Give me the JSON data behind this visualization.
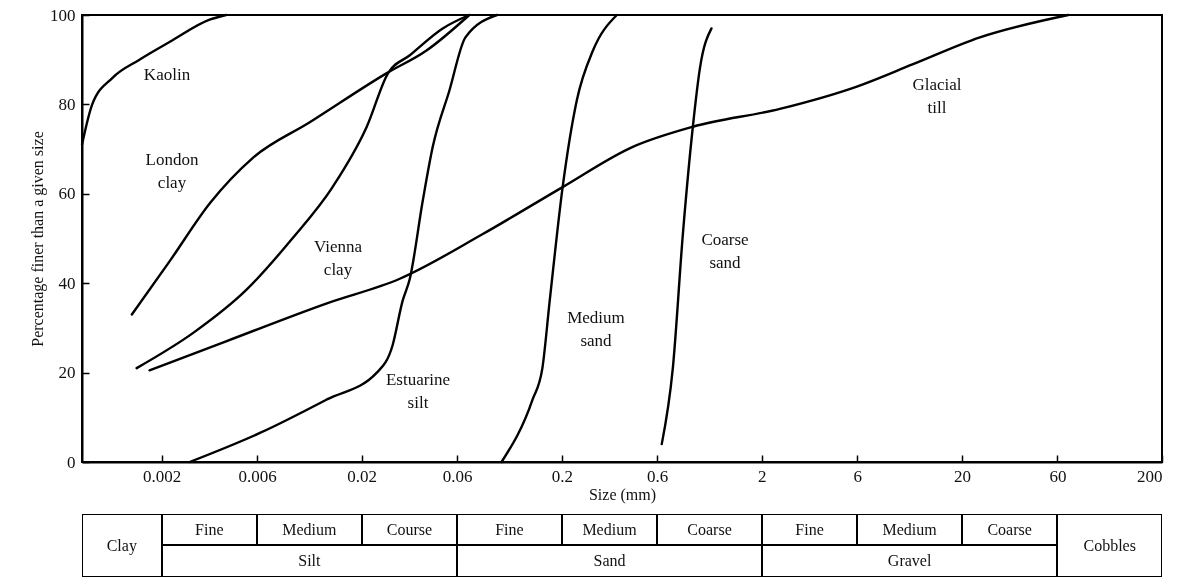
{
  "chart_data": {
    "type": "line",
    "xlabel": "Size (mm)",
    "ylabel": "Percentage finer than a given size",
    "log": "x",
    "xlim": [
      0.0008,
      200
    ],
    "xticks": [
      0.002,
      0.006,
      0.02,
      0.06,
      0.2,
      0.6,
      2,
      6,
      20,
      60,
      200
    ],
    "ylim": [
      0,
      100
    ],
    "yticks": [
      0,
      20,
      40,
      60,
      80,
      100
    ],
    "grid": false,
    "marker": "none",
    "line_style": "solid",
    "series": [
      {
        "name": "Kaolin",
        "color": "#000000",
        "x": [
          0.0008,
          0.0009,
          0.00114,
          0.00155,
          0.0022,
          0.0035,
          0.0042
        ],
        "values": [
          71,
          80,
          86,
          90,
          94,
          99,
          100
        ]
      },
      {
        "name": "London clay",
        "color": "#000000",
        "x": [
          0.00142,
          0.0022,
          0.0035,
          0.0057,
          0.011,
          0.0267,
          0.042,
          0.069
        ],
        "values": [
          33,
          45,
          58,
          68,
          76,
          87,
          92,
          100
        ]
      },
      {
        "name": "Vienna clay",
        "color": "#000000",
        "x": [
          0.0015,
          0.0029,
          0.0053,
          0.009,
          0.0143,
          0.0212,
          0.0271,
          0.0348,
          0.0508,
          0.069
        ],
        "values": [
          21,
          29,
          38.5,
          50,
          61.5,
          75,
          87,
          91,
          97,
          100
        ]
      },
      {
        "name": "Estuarine silt",
        "color": "#000000",
        "x": [
          0.00276,
          0.0062,
          0.0134,
          0.0238,
          0.0285,
          0.032,
          0.0348,
          0.0404,
          0.0453,
          0.0548,
          0.066,
          0.095
        ],
        "values": [
          0,
          6.5,
          14,
          20,
          26,
          36,
          41,
          58.5,
          70.5,
          83,
          95,
          100
        ]
      },
      {
        "name": "Medium sand",
        "color": "#000000",
        "x": [
          0.1,
          0.143,
          0.16,
          0.174,
          0.202,
          0.238,
          0.286,
          0.377
        ],
        "values": [
          0,
          14,
          21,
          36,
          61.5,
          81,
          92,
          100
        ]
      },
      {
        "name": "Coarse sand",
        "color": "#000000",
        "x": [
          0.632,
          0.718,
          0.806,
          0.904,
          0.98,
          1.12
        ],
        "values": [
          4,
          21,
          51,
          75,
          88,
          97
        ]
      },
      {
        "name": "Glacial till",
        "color": "#000000",
        "x": [
          0.00174,
          0.0042,
          0.0134,
          0.031,
          0.0806,
          0.202,
          0.453,
          0.904,
          2.46,
          5.97,
          11.4,
          24.6,
          68
        ],
        "values": [
          20.5,
          27,
          35.5,
          41,
          51,
          61.5,
          70.5,
          75,
          79,
          84,
          89,
          95,
          100
        ]
      }
    ],
    "annotations": [
      "Clay",
      "Fine",
      "Medium",
      "Course",
      "Silt",
      "Fine",
      "Medium",
      "Coarse",
      "Sand",
      "Fine",
      "Medium",
      "Coarse",
      "Gravel",
      "Cobbles"
    ]
  }
}
